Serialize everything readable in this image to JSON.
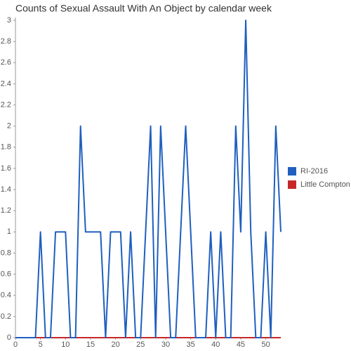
{
  "chart_data": {
    "type": "line",
    "title": "Counts of Sexual Assault With An Object by calendar week",
    "x": [
      0,
      1,
      2,
      3,
      4,
      5,
      6,
      7,
      8,
      9,
      10,
      11,
      12,
      13,
      14,
      15,
      16,
      17,
      18,
      19,
      20,
      21,
      22,
      23,
      24,
      25,
      26,
      27,
      28,
      29,
      30,
      31,
      32,
      33,
      34,
      35,
      36,
      37,
      38,
      39,
      40,
      41,
      42,
      43,
      44,
      45,
      46,
      47,
      48,
      49,
      50,
      51,
      52,
      53
    ],
    "series": [
      {
        "name": "RI-2016",
        "color": "#1f5fbf",
        "values": [
          0,
          0,
          0,
          0,
          0,
          1,
          0,
          0,
          1,
          1,
          1,
          0,
          0,
          2,
          1,
          1,
          1,
          1,
          0,
          1,
          1,
          1,
          0,
          1,
          0,
          0,
          1,
          2,
          0,
          2,
          1,
          0,
          0,
          1,
          2,
          1,
          0,
          0,
          0,
          1,
          0,
          1,
          0,
          0,
          2,
          1,
          3,
          1,
          0,
          0,
          1,
          0,
          2,
          1
        ]
      },
      {
        "name": "Little Compton",
        "color": "#c62828",
        "values": [
          0,
          0,
          0,
          0,
          0,
          0,
          0,
          0,
          0,
          0,
          0,
          0,
          0,
          0,
          0,
          0,
          0,
          0,
          0,
          0,
          0,
          0,
          0,
          0,
          0,
          0,
          0,
          0,
          0,
          0,
          0,
          0,
          0,
          0,
          0,
          0,
          0,
          0,
          0,
          0,
          0,
          0,
          0,
          0,
          0,
          0,
          0,
          0,
          0,
          0,
          0,
          0,
          0,
          0
        ]
      }
    ],
    "xlim": [
      0,
      53
    ],
    "xticks": [
      0,
      5,
      10,
      15,
      20,
      25,
      30,
      35,
      40,
      45,
      50
    ],
    "ylim": [
      0,
      3
    ],
    "yticks": [
      0,
      0.2,
      0.4,
      0.6,
      0.8,
      1,
      1.2,
      1.4,
      1.6,
      1.8,
      2,
      2.2,
      2.4,
      2.6,
      2.8,
      3
    ],
    "legend": "right"
  }
}
